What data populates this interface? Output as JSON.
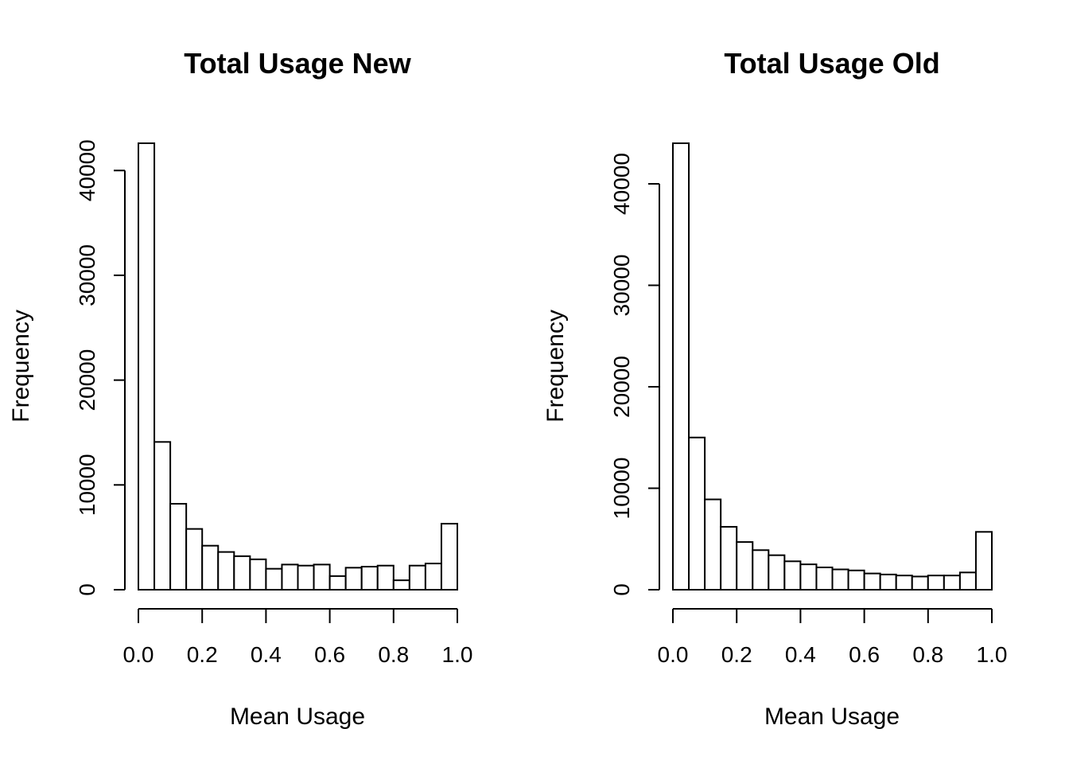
{
  "chart_data": [
    {
      "type": "bar",
      "title": "Total Usage New",
      "xlabel": "Mean Usage",
      "ylabel": "Frequency",
      "bin_edges": [
        0.0,
        0.05,
        0.1,
        0.15,
        0.2,
        0.25,
        0.3,
        0.35,
        0.4,
        0.45,
        0.5,
        0.55,
        0.6,
        0.65,
        0.7,
        0.75,
        0.8,
        0.85,
        0.9,
        0.95,
        1.0
      ],
      "values": [
        42600,
        14100,
        8200,
        5800,
        4200,
        3600,
        3200,
        2900,
        2000,
        2400,
        2300,
        2400,
        1300,
        2100,
        2200,
        2300,
        900,
        2300,
        2500,
        6300
      ],
      "xlim": [
        0,
        1
      ],
      "ylim": [
        0,
        42600
      ],
      "x_ticks": [
        "0.0",
        "0.2",
        "0.4",
        "0.6",
        "0.8",
        "1.0"
      ],
      "y_ticks": [
        "0",
        "10000",
        "20000",
        "30000",
        "40000"
      ],
      "y_tick_values": [
        0,
        10000,
        20000,
        30000,
        40000
      ]
    },
    {
      "type": "bar",
      "title": "Total Usage Old",
      "xlabel": "Mean Usage",
      "ylabel": "Frequency",
      "bin_edges": [
        0.0,
        0.05,
        0.1,
        0.15,
        0.2,
        0.25,
        0.3,
        0.35,
        0.4,
        0.45,
        0.5,
        0.55,
        0.6,
        0.65,
        0.7,
        0.75,
        0.8,
        0.85,
        0.9,
        0.95,
        1.0
      ],
      "values": [
        44000,
        15000,
        8900,
        6200,
        4700,
        3900,
        3400,
        2800,
        2500,
        2200,
        2000,
        1900,
        1600,
        1500,
        1400,
        1300,
        1400,
        1400,
        1700,
        5700
      ],
      "xlim": [
        0,
        1
      ],
      "ylim": [
        0,
        44000
      ],
      "x_ticks": [
        "0.0",
        "0.2",
        "0.4",
        "0.6",
        "0.8",
        "1.0"
      ],
      "y_ticks": [
        "0",
        "10000",
        "20000",
        "30000",
        "40000"
      ],
      "y_tick_values": [
        0,
        10000,
        20000,
        30000,
        40000
      ]
    }
  ]
}
